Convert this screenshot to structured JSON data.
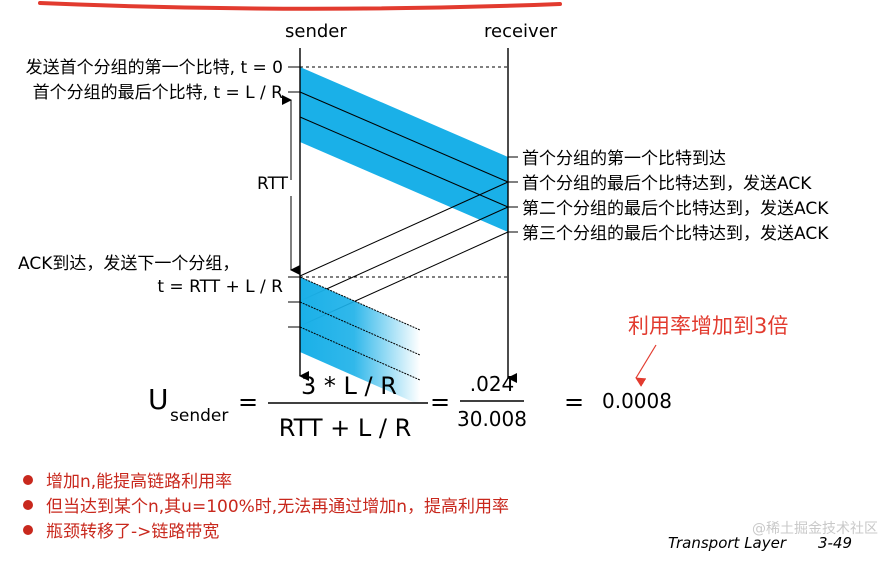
{
  "headers": {
    "sender": "sender",
    "receiver": "receiver"
  },
  "left_labels": {
    "t0": "发送首个分组的第一个比特, t = 0",
    "tlr": "首个分组的最后个比特, t = L / R",
    "rtt": "RTT",
    "ack_arrive": "ACK到达，发送下一个分组，",
    "t_rtt": "t = RTT + L / R"
  },
  "right_labels": [
    "首个分组的第一个比特到达",
    "首个分组的最后个比特达到，发送ACK",
    "第二个分组的最后个比特达到，发送ACK",
    "第三个分组的最后个比特达到，发送ACK"
  ],
  "annotation": "利用率增加到3倍",
  "equation": {
    "u": "U",
    "sub": "sender",
    "eq1": "=",
    "numer": "3 * L / R",
    "denom": "RTT + L / R",
    "eq2": "=",
    "numer2": ".024",
    "denom2": "30.008",
    "eq3": "=",
    "result": "0.0008"
  },
  "bullets": [
    "增加n,能提高链路利用率",
    "但当达到某个n,其u=100%时,无法再通过增加n，提高利用率",
    "瓶颈转移了->链路带宽"
  ],
  "footer": "Transport Layer",
  "page": "3-49",
  "watermark": "@稀土掘金技术社区",
  "colors": {
    "packet": "#1ab0e8",
    "accent_red": "#e23b2f",
    "bullet": "#c8281d"
  }
}
